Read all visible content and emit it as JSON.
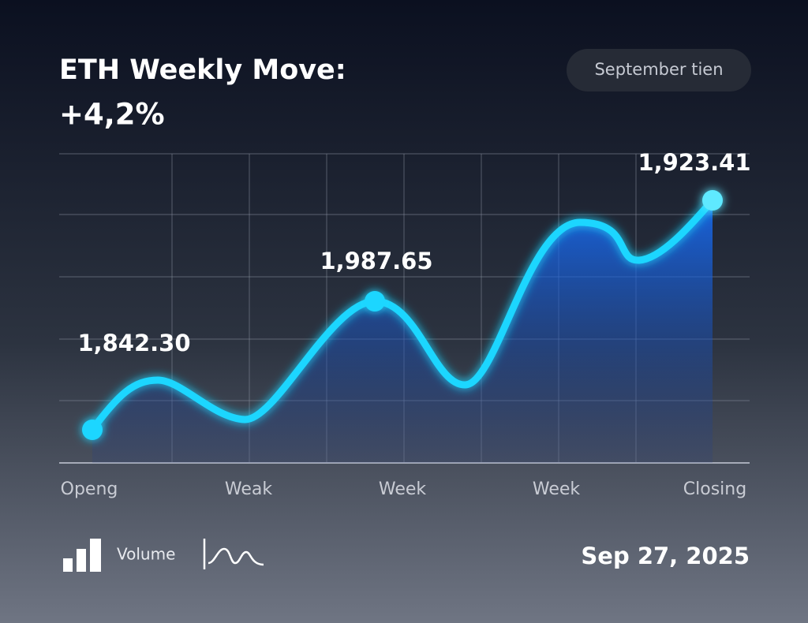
{
  "chart_data": {
    "type": "line",
    "title": "ETH Weekly Move:",
    "subtitle": "+4,2%",
    "badge": "September tien",
    "categories": [
      "Openg",
      "Weak",
      "Week",
      "Week",
      "Closing"
    ],
    "annotations": [
      "1,842.30",
      "1,987.65",
      "1,923.41"
    ],
    "legend": [
      "Volume"
    ],
    "date": "Sep 27, 2025",
    "color": "#1fd6ff",
    "grid": true
  }
}
